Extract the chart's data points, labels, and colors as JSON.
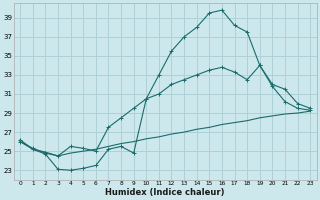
{
  "xlabel": "Humidex (Indice chaleur)",
  "bg_color": "#cce8ec",
  "grid_color": "#b0d0d8",
  "line_color": "#1a6b6b",
  "xlim": [
    -0.5,
    23.5
  ],
  "ylim": [
    22.0,
    40.5
  ],
  "xticks": [
    0,
    1,
    2,
    3,
    4,
    5,
    6,
    7,
    8,
    9,
    10,
    11,
    12,
    13,
    14,
    15,
    16,
    17,
    18,
    19,
    20,
    21,
    22,
    23
  ],
  "yticks": [
    23,
    25,
    27,
    29,
    31,
    33,
    35,
    37,
    39
  ],
  "line1_x": [
    0,
    1,
    2,
    3,
    4,
    5,
    6,
    7,
    8,
    9,
    10,
    11,
    12,
    13,
    14,
    15,
    16,
    17,
    18,
    19,
    20,
    21,
    22,
    23
  ],
  "line1_y": [
    26.2,
    25.2,
    24.7,
    23.1,
    23.0,
    23.2,
    23.5,
    25.2,
    25.5,
    24.8,
    30.5,
    33.0,
    35.5,
    37.0,
    38.0,
    39.5,
    39.8,
    38.2,
    37.5,
    34.0,
    31.8,
    30.2,
    29.5,
    29.3
  ],
  "line2_x": [
    0,
    1,
    2,
    3,
    4,
    5,
    6,
    7,
    8,
    9,
    10,
    11,
    12,
    13,
    14,
    15,
    16,
    17,
    18,
    19,
    20,
    21,
    22,
    23
  ],
  "line2_y": [
    26.0,
    25.3,
    24.8,
    24.5,
    25.5,
    25.3,
    25.0,
    27.5,
    28.5,
    29.5,
    30.5,
    31.0,
    32.0,
    32.5,
    33.0,
    33.5,
    33.8,
    33.3,
    32.5,
    34.0,
    32.0,
    31.5,
    30.0,
    29.5
  ],
  "line3_x": [
    0,
    1,
    2,
    3,
    4,
    5,
    6,
    7,
    8,
    9,
    10,
    11,
    12,
    13,
    14,
    15,
    16,
    17,
    18,
    19,
    20,
    21,
    22,
    23
  ],
  "line3_y": [
    26.0,
    25.2,
    24.9,
    24.5,
    24.8,
    25.0,
    25.2,
    25.5,
    25.8,
    26.0,
    26.3,
    26.5,
    26.8,
    27.0,
    27.3,
    27.5,
    27.8,
    28.0,
    28.2,
    28.5,
    28.7,
    28.9,
    29.0,
    29.2
  ]
}
